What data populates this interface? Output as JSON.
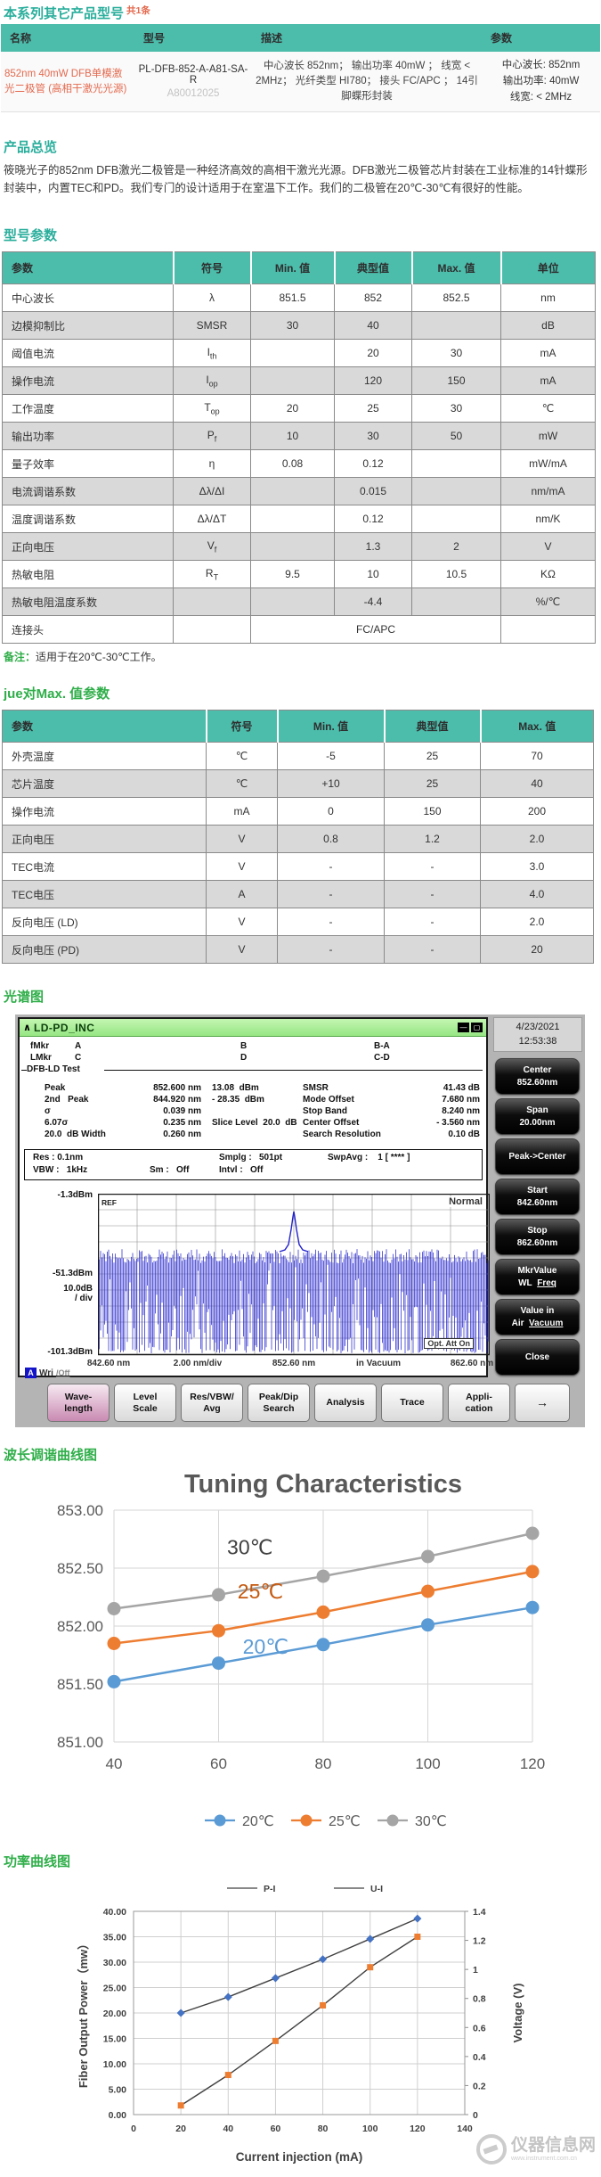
{
  "colors": {
    "accent_teal": "#4CBCAB",
    "heading_teal": "#2AAE9C",
    "heading_green": "#2FAE49",
    "link_orange": "#E4694E",
    "row_alt": "#D9D9D9",
    "spectrum_blue": "#2222CC"
  },
  "header": {
    "title": "本系列其它产品型号",
    "count": "共1条"
  },
  "products_table": {
    "headers": [
      "名称",
      "型号",
      "描述",
      "参数"
    ],
    "row": {
      "name": "852nm 40mW DFB单模激光二极管 (高相干激光光源)",
      "model": "PL-DFB-852-A-A81-SA-R",
      "model_sub": "A80012025",
      "description": "中心波长 852nm； 输出功率 40mW ； 线宽 < 2MHz； 光纤类型 HI780； 接头 FC/APC ； 14引脚蝶形封装",
      "params": [
        "中心波长: 852nm",
        "输出功率: 40mW",
        "线宽: < 2MHz"
      ]
    }
  },
  "sections": {
    "overview_heading": "产品总览",
    "overview_text": "筱晓光子的852nm DFB激光二极管是一种经济高效的高相干激光光源。DFB激光二极管芯片封装在工业标准的14针蝶形封装中，内置TEC和PD。我们专门的设计适用于在室温下工作。我们的二极管在20℃-30℃有很好的性能。",
    "spec1_heading": "型号参数",
    "note_label": "备注：",
    "note_text": "适用于在20℃-30℃工作。",
    "spec2_heading": "jue对Max.  值参数",
    "osa_heading": "光谱图",
    "tuning_heading": "波长调谐曲线图",
    "power_heading": "功率曲线图"
  },
  "spec_table1": {
    "headers": [
      "参数",
      "符号",
      "Min. 值",
      "典型值",
      "Max. 值",
      "单位"
    ],
    "rows": [
      {
        "param": "中心波长",
        "symbol": "λ",
        "min": "851.5",
        "typ": "852",
        "max": "852.5",
        "unit": "nm"
      },
      {
        "param": "边模抑制比",
        "symbol": "SMSR",
        "min": "30",
        "typ": "40",
        "max": "",
        "unit": "dB"
      },
      {
        "param": "阈值电流",
        "symbol": "I_th",
        "min": "",
        "typ": "20",
        "max": "30",
        "unit": "mA"
      },
      {
        "param": "操作电流",
        "symbol": "I_op",
        "min": "",
        "typ": "120",
        "max": "150",
        "unit": "mA"
      },
      {
        "param": "工作温度",
        "symbol": "T_op",
        "min": "20",
        "typ": "25",
        "max": "30",
        "unit": "℃"
      },
      {
        "param": "输出功率",
        "symbol": "P_f",
        "min": "10",
        "typ": "30",
        "max": "50",
        "unit": "mW"
      },
      {
        "param": "量子效率",
        "symbol": "η",
        "min": "0.08",
        "typ": "0.12",
        "max": "",
        "unit": "mW/mA"
      },
      {
        "param": "电流调谐系数",
        "symbol": "Δλ/ΔI",
        "min": "",
        "typ": "0.015",
        "max": "",
        "unit": "nm/mA"
      },
      {
        "param": "温度调谐系数",
        "symbol": "Δλ/ΔT",
        "min": "",
        "typ": "0.12",
        "max": "",
        "unit": "nm/K"
      },
      {
        "param": "正向电压",
        "symbol": "V_f",
        "min": "",
        "typ": "1.3",
        "max": "2",
        "unit": "V"
      },
      {
        "param": "热敏电阻",
        "symbol": "R_T",
        "min": "9.5",
        "typ": "10",
        "max": "10.5",
        "unit": "KΩ"
      },
      {
        "param": "热敏电阻温度系数",
        "symbol": "",
        "min": "",
        "typ": "-4.4",
        "max": "",
        "unit": "%/℃"
      },
      {
        "param": "连接头",
        "symbol": "",
        "span_value": "FC/APC",
        "unit": ""
      }
    ]
  },
  "spec_table2": {
    "headers": [
      "参数",
      "符号",
      "Min. 值",
      "典型值",
      "Max. 值"
    ],
    "rows": [
      {
        "param": "外壳温度",
        "symbol": "℃",
        "min": "-5",
        "typ": "25",
        "max": "70"
      },
      {
        "param": "芯片温度",
        "symbol": "℃",
        "min": "+10",
        "typ": "25",
        "max": "40"
      },
      {
        "param": "操作电流",
        "symbol": "mA",
        "min": "0",
        "typ": "150",
        "max": "200"
      },
      {
        "param": "正向电压",
        "symbol": "V",
        "min": "0.8",
        "typ": "1.2",
        "max": "2.0"
      },
      {
        "param": "TEC电流",
        "symbol": "V",
        "min": "-",
        "typ": "-",
        "max": "3.0"
      },
      {
        "param": "TEC电压",
        "symbol": "A",
        "min": "-",
        "typ": "-",
        "max": "4.0"
      },
      {
        "param": "反向电压 (LD)",
        "symbol": "V",
        "min": "-",
        "typ": "-",
        "max": "2.0"
      },
      {
        "param": "反向电压 (PD)",
        "symbol": "V",
        "min": "-",
        "typ": "-",
        "max": "20"
      }
    ]
  },
  "osa": {
    "window_title": "LD-PD_INC",
    "window_icon": "∧",
    "window_controls": [
      {
        "name": "minimize-icon",
        "glyph": "—"
      },
      {
        "name": "maximize-icon",
        "glyph": "▢"
      }
    ],
    "datetime_line1": "4/23/2021",
    "datetime_line2": "12:53:38",
    "marker_rows": [
      {
        "name": "fMkr",
        "c1": "A",
        "c2": "B",
        "c3": "B-A"
      },
      {
        "name": "LMkr",
        "c1": "C",
        "c2": "D",
        "c3": "C-D"
      }
    ],
    "test_label": "DFB-LD Test",
    "readout_left": [
      {
        "label": "Peak",
        "v1": "852.600 nm",
        "v2": "13.08  dBm"
      },
      {
        "label": "2nd   Peak",
        "v1": "844.920 nm",
        "v2": "- 28.35  dBm"
      },
      {
        "label": "σ",
        "v1": "0.039 nm",
        "v2": ""
      },
      {
        "label": "6.07σ",
        "v1": "0.235 nm",
        "v2": "Slice Level  20.0  dB"
      },
      {
        "label": "20.0  dB Width",
        "v1": "0.260 nm",
        "v2": ""
      }
    ],
    "readout_right": [
      {
        "label": "SMSR",
        "value": "41.43 dB"
      },
      {
        "label": "Mode Offset",
        "value": "7.680 nm"
      },
      {
        "label": "Stop Band",
        "value": "8.240 nm"
      },
      {
        "label": "Center Offset",
        "value": "- 3.560 nm"
      },
      {
        "label": "Search Resolution",
        "value": "0.10 dB"
      }
    ],
    "settings": {
      "res": "Res : 0.1nm",
      "smplg": "Smplg :   501pt",
      "swpavg": "SwpAvg :    1 [ **** ]",
      "vbw": "VBW :   1kHz",
      "sm": "Sm :   Off",
      "intvl": "Intvl :   Off"
    },
    "graph": {
      "mode": "Normal",
      "ref": "REF",
      "y_top": "-1.3dBm",
      "y_mid": "-51.3dBm",
      "y_div1": "10.0dB",
      "y_div2": "/ div",
      "y_bottom": "-101.3dBm",
      "x_labels": [
        "842.60 nm",
        "2.00 nm/div",
        "852.60 nm",
        "in Vacuum",
        "862.60 nm"
      ],
      "opt_att": "Opt. Att On",
      "trace_letter": "A",
      "trace_mode": "Wri",
      "trace_sub": "/Off"
    },
    "side_buttons": [
      {
        "id": "center",
        "lines": [
          "Center",
          "852.60nm"
        ]
      },
      {
        "id": "span",
        "lines": [
          "Span",
          "20.00nm"
        ]
      },
      {
        "id": "peak-to-center",
        "lines": [
          "Peak->Center"
        ]
      },
      {
        "id": "start",
        "lines": [
          "Start",
          "842.60nm"
        ]
      },
      {
        "id": "stop",
        "lines": [
          "Stop",
          "862.60nm"
        ]
      },
      {
        "id": "mkr-value",
        "lines": [
          "MkrValue",
          "WL Freq"
        ],
        "underline_last": true
      },
      {
        "id": "value-in",
        "lines": [
          "Value in",
          "Air Vacuum"
        ],
        "underline_last": true
      },
      {
        "id": "close",
        "lines": [
          "Close"
        ]
      }
    ],
    "toolbar": [
      {
        "id": "wavelength",
        "lines": [
          "Wave-",
          "length"
        ],
        "active": true
      },
      {
        "id": "level-scale",
        "lines": [
          "Level",
          "Scale"
        ]
      },
      {
        "id": "res-vbw-avg",
        "lines": [
          "Res/VBW/",
          "Avg"
        ]
      },
      {
        "id": "peak-dip-search",
        "lines": [
          "Peak/Dip",
          "Search"
        ]
      },
      {
        "id": "analysis",
        "lines": [
          "Analysis"
        ]
      },
      {
        "id": "trace",
        "lines": [
          "Trace"
        ]
      },
      {
        "id": "application",
        "lines": [
          "Appli-",
          "cation"
        ]
      },
      {
        "id": "next-page",
        "lines": [
          "→"
        ],
        "arrow": true
      }
    ]
  },
  "chart_data": [
    {
      "id": "tuning",
      "type": "line",
      "title": "Tuning Characteristics",
      "x": [
        40,
        60,
        80,
        100,
        120
      ],
      "xticks": [
        "40",
        "60",
        "80",
        "100",
        "120"
      ],
      "ylim": [
        851.0,
        853.0
      ],
      "yticks": [
        "851.00",
        "851.50",
        "852.00",
        "852.50",
        "853.00"
      ],
      "grid": true,
      "legend_position": "bottom",
      "series": [
        {
          "name": "20℃",
          "color": "#5B9BD5",
          "values": [
            851.52,
            851.68,
            851.84,
            852.01,
            852.16
          ]
        },
        {
          "name": "25℃",
          "color": "#ED7D31",
          "values": [
            851.85,
            851.96,
            852.12,
            852.3,
            852.47
          ]
        },
        {
          "name": "30℃",
          "color": "#A5A5A5",
          "values": [
            852.15,
            852.27,
            852.43,
            852.6,
            852.8
          ]
        }
      ],
      "annotations": [
        {
          "text": "30℃",
          "x": 66,
          "y": 852.62,
          "color": "#404040"
        },
        {
          "text": "25℃",
          "x": 68,
          "y": 852.24,
          "color": "#C55A11"
        },
        {
          "text": "20℃",
          "x": 69,
          "y": 851.76,
          "color": "#5B9BD5"
        }
      ]
    },
    {
      "id": "power",
      "type": "line",
      "xlabel": "Current injection  (mA)",
      "ylabel_left": "Fiber Output Power（mw）",
      "ylabel_right": "Voltage (V)",
      "xlim": [
        0,
        140
      ],
      "xticks": [
        0,
        20,
        40,
        60,
        80,
        100,
        120,
        140
      ],
      "ylim_left": [
        0,
        40
      ],
      "yticks_left": [
        "0.00",
        "5.00",
        "10.00",
        "15.00",
        "20.00",
        "25.00",
        "30.00",
        "35.00",
        "40.00"
      ],
      "ylim_right": [
        0,
        1.4
      ],
      "yticks_right": [
        "0",
        "0.2",
        "0.4",
        "0.6",
        "0.8",
        "1",
        "1.2",
        "1.4"
      ],
      "legend_position": "top",
      "series": [
        {
          "name": "P-I",
          "axis": "left",
          "marker": "square",
          "marker_color": "#ED7D31",
          "line_color": "#404040",
          "x": [
            20,
            40,
            60,
            80,
            100,
            120
          ],
          "values": [
            1.8,
            7.8,
            14.5,
            21.5,
            29.0,
            35.0
          ]
        },
        {
          "name": "U-I",
          "axis": "right",
          "marker": "diamond",
          "marker_color": "#4472C4",
          "line_color": "#404040",
          "x": [
            20,
            40,
            60,
            80,
            100,
            120
          ],
          "values": [
            0.7,
            0.81,
            0.94,
            1.07,
            1.21,
            1.35
          ]
        }
      ]
    }
  ],
  "watermark": {
    "text": "仪器信息网",
    "url": "www.instrument.com.cn"
  }
}
